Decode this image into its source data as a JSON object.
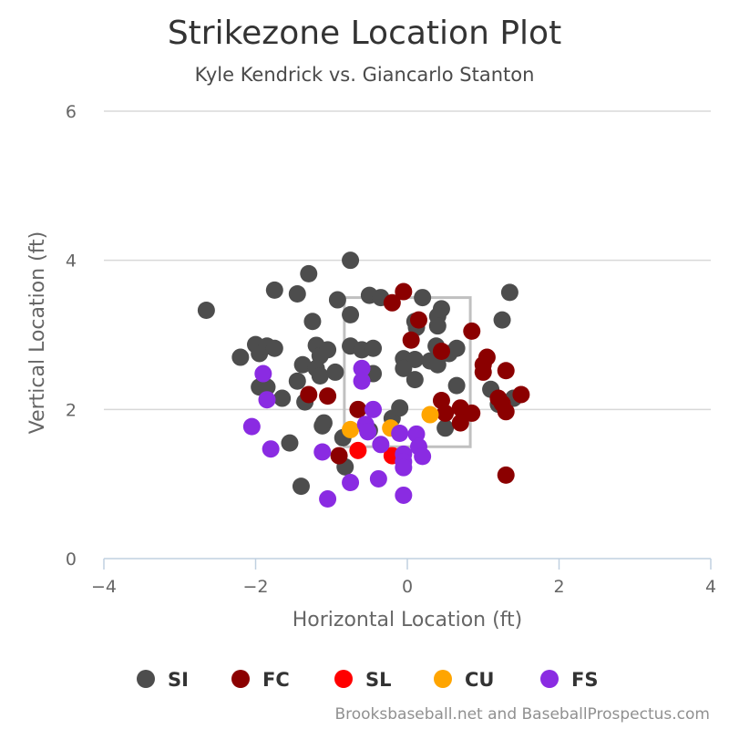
{
  "chart_data": {
    "type": "scatter",
    "title": "Strikezone Location Plot",
    "subtitle": "Kyle Kendrick vs. Giancarlo Stanton",
    "xlabel": "Horizontal Location (ft)",
    "ylabel": "Vertical Location (ft)",
    "xlim": [
      -4,
      4
    ],
    "ylim": [
      0,
      6
    ],
    "x_ticks": [
      -4,
      -2,
      0,
      2,
      4
    ],
    "y_ticks": [
      0,
      2,
      4,
      6
    ],
    "x_tick_labels": [
      "−4",
      "−2",
      "0",
      "2",
      "4"
    ],
    "y_tick_labels": [
      "0",
      "2",
      "4",
      "6"
    ],
    "grid": "horizontal",
    "legend_position": "bottom",
    "strike_zone": {
      "x": [
        -0.83,
        0.83
      ],
      "y": [
        1.5,
        3.5
      ]
    },
    "credit": "Brooksbaseball.net and BaseballProspectus.com",
    "series": [
      {
        "name": "SI",
        "color": "#4d4d4d",
        "points": [
          [
            -2.65,
            3.33
          ],
          [
            -2.2,
            2.7
          ],
          [
            -2.0,
            2.87
          ],
          [
            -1.95,
            2.75
          ],
          [
            -1.85,
            2.85
          ],
          [
            -1.75,
            2.82
          ],
          [
            -1.75,
            3.6
          ],
          [
            -1.45,
            3.55
          ],
          [
            -1.3,
            3.82
          ],
          [
            -1.25,
            3.18
          ],
          [
            -1.2,
            2.86
          ],
          [
            -1.15,
            2.72
          ],
          [
            -1.05,
            2.8
          ],
          [
            -0.92,
            3.47
          ],
          [
            -0.75,
            4.0
          ],
          [
            -0.75,
            3.27
          ],
          [
            -0.75,
            2.85
          ],
          [
            -0.6,
            2.8
          ],
          [
            -0.5,
            3.53
          ],
          [
            -0.35,
            3.5
          ],
          [
            -0.45,
            2.82
          ],
          [
            -1.38,
            2.6
          ],
          [
            -1.2,
            2.55
          ],
          [
            -1.15,
            2.45
          ],
          [
            -0.95,
            2.5
          ],
          [
            -0.45,
            2.48
          ],
          [
            -1.45,
            2.38
          ],
          [
            -1.35,
            2.1
          ],
          [
            -1.65,
            2.15
          ],
          [
            -1.95,
            2.3
          ],
          [
            -1.85,
            2.3
          ],
          [
            -1.1,
            1.82
          ],
          [
            -1.12,
            1.78
          ],
          [
            -0.85,
            1.62
          ],
          [
            -0.5,
            1.72
          ],
          [
            -0.55,
            1.78
          ],
          [
            -0.2,
            1.88
          ],
          [
            -0.1,
            2.02
          ],
          [
            -1.55,
            1.55
          ],
          [
            -0.82,
            1.23
          ],
          [
            -1.4,
            0.97
          ],
          [
            0.2,
            3.5
          ],
          [
            0.45,
            3.35
          ],
          [
            0.4,
            3.25
          ],
          [
            0.4,
            3.12
          ],
          [
            0.12,
            3.1
          ],
          [
            -0.05,
            2.68
          ],
          [
            0.1,
            2.67
          ],
          [
            -0.05,
            2.55
          ],
          [
            0.1,
            2.4
          ],
          [
            0.3,
            2.65
          ],
          [
            0.38,
            2.85
          ],
          [
            0.55,
            2.75
          ],
          [
            0.65,
            2.82
          ],
          [
            0.4,
            2.6
          ],
          [
            0.65,
            2.32
          ],
          [
            0.5,
            1.75
          ],
          [
            1.1,
            2.27
          ],
          [
            1.2,
            2.07
          ],
          [
            1.4,
            2.15
          ],
          [
            1.25,
            3.2
          ],
          [
            1.35,
            3.57
          ],
          [
            0.1,
            3.18
          ]
        ]
      },
      {
        "name": "FC",
        "color": "#8b0000",
        "points": [
          [
            -0.05,
            3.58
          ],
          [
            -0.2,
            3.43
          ],
          [
            0.15,
            3.2
          ],
          [
            0.05,
            2.93
          ],
          [
            0.45,
            2.78
          ],
          [
            0.85,
            3.05
          ],
          [
            1.05,
            2.7
          ],
          [
            1.0,
            2.6
          ],
          [
            1.0,
            2.5
          ],
          [
            1.3,
            2.52
          ],
          [
            1.2,
            2.15
          ],
          [
            1.25,
            2.08
          ],
          [
            1.5,
            2.2
          ],
          [
            1.3,
            1.97
          ],
          [
            1.3,
            1.12
          ],
          [
            -1.3,
            2.2
          ],
          [
            -1.05,
            2.18
          ],
          [
            -0.65,
            2.0
          ],
          [
            0.45,
            2.12
          ],
          [
            0.5,
            1.95
          ],
          [
            0.7,
            2.02
          ],
          [
            0.75,
            1.95
          ],
          [
            0.85,
            1.95
          ],
          [
            0.7,
            1.82
          ],
          [
            -0.9,
            1.38
          ]
        ]
      },
      {
        "name": "SL",
        "color": "#ff0000",
        "points": [
          [
            -0.65,
            1.45
          ],
          [
            -0.2,
            1.38
          ]
        ]
      },
      {
        "name": "CU",
        "color": "#ffa500",
        "points": [
          [
            -0.75,
            1.73
          ],
          [
            -0.22,
            1.75
          ],
          [
            0.3,
            1.93
          ]
        ]
      },
      {
        "name": "FS",
        "color": "#8a2be2",
        "points": [
          [
            -1.9,
            2.48
          ],
          [
            -1.85,
            2.13
          ],
          [
            -2.05,
            1.77
          ],
          [
            -1.8,
            1.47
          ],
          [
            -1.12,
            1.43
          ],
          [
            -0.6,
            2.55
          ],
          [
            -0.6,
            2.38
          ],
          [
            -0.45,
            2.0
          ],
          [
            -0.55,
            1.8
          ],
          [
            -0.52,
            1.7
          ],
          [
            -0.35,
            1.53
          ],
          [
            -0.1,
            1.68
          ],
          [
            0.12,
            1.67
          ],
          [
            0.15,
            1.5
          ],
          [
            0.2,
            1.37
          ],
          [
            -0.05,
            1.4
          ],
          [
            -0.05,
            1.3
          ],
          [
            -0.05,
            1.22
          ],
          [
            -0.38,
            1.07
          ],
          [
            -0.75,
            1.02
          ],
          [
            -1.05,
            0.8
          ],
          [
            -0.05,
            0.85
          ]
        ]
      }
    ]
  }
}
